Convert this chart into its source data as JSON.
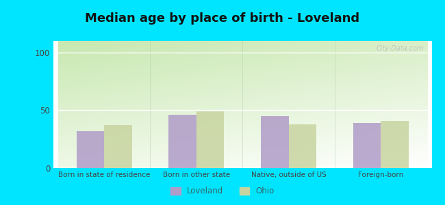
{
  "title": "Median age by place of birth - Loveland",
  "categories": [
    "Born in state of residence",
    "Born in other state",
    "Native, outside of US",
    "Foreign-born"
  ],
  "loveland_values": [
    32,
    46,
    45,
    39
  ],
  "ohio_values": [
    37,
    49,
    38,
    41
  ],
  "loveland_color": "#b09cc8",
  "ohio_color": "#c8d4a0",
  "background_outer": "#00e5ff",
  "ylim": [
    0,
    110
  ],
  "yticks": [
    0,
    50,
    100
  ],
  "bar_width": 0.3,
  "title_fontsize": 13,
  "legend_labels": [
    "Loveland",
    "Ohio"
  ],
  "watermark": "City-Data.com"
}
